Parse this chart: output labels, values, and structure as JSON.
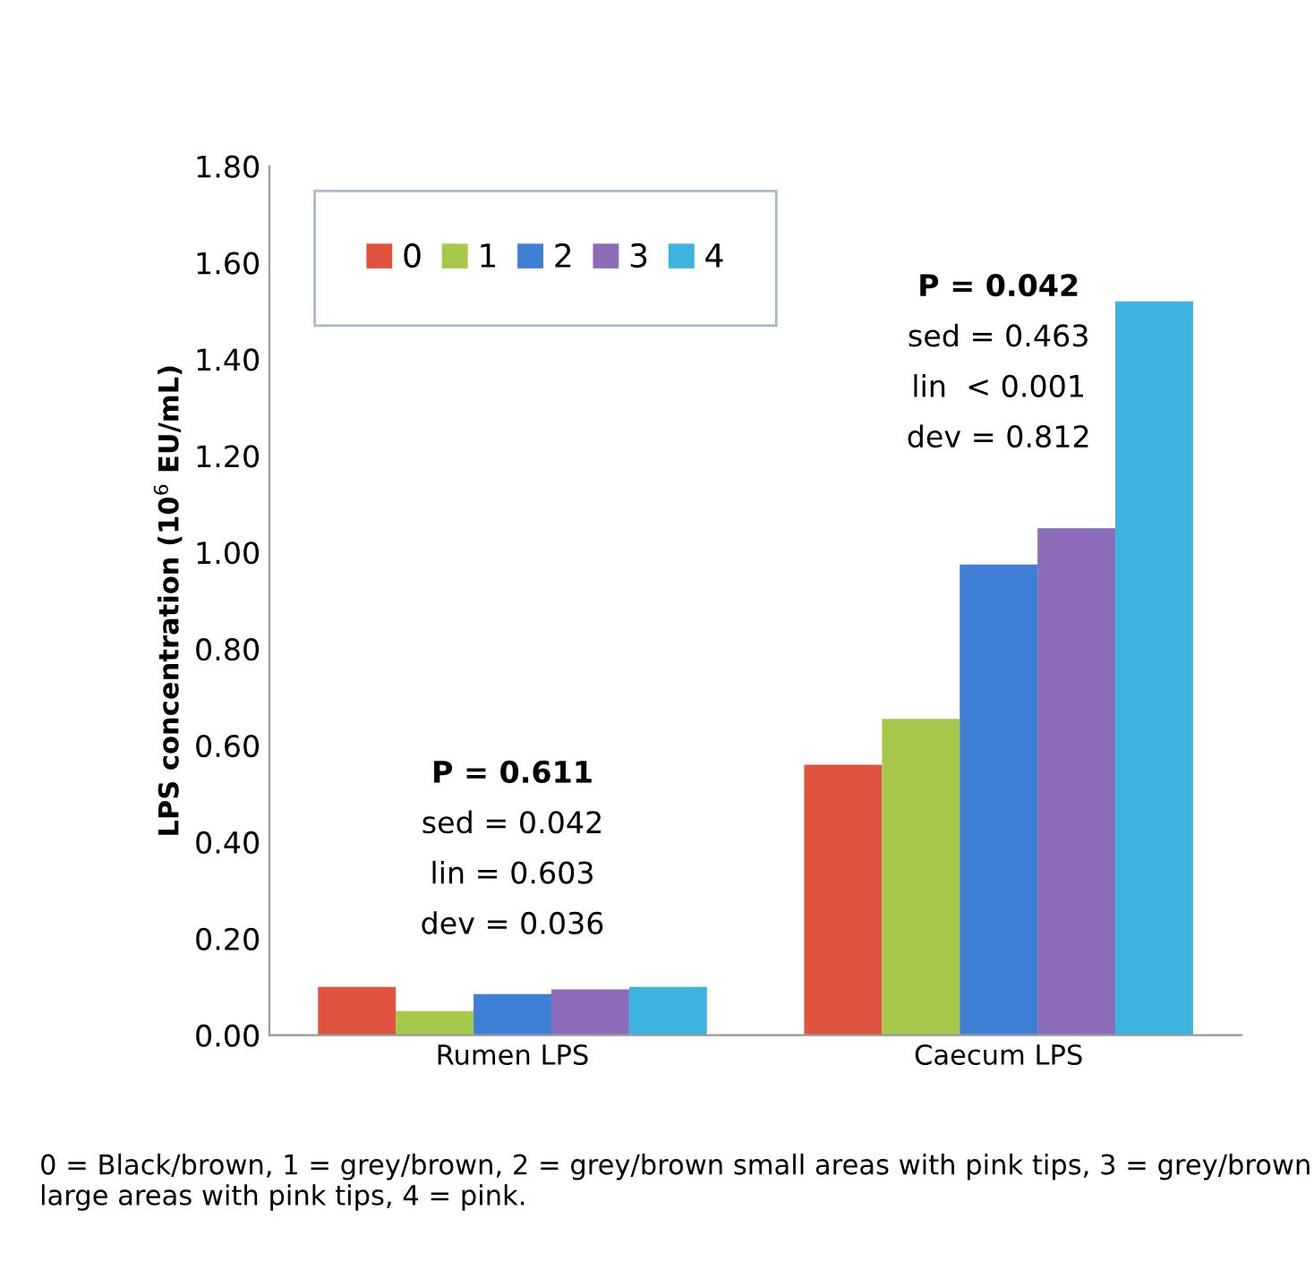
{
  "chart_data": {
    "type": "bar",
    "ylabel": "LPS concentration (10$^{6}$ EU/mL)",
    "categories": [
      "Rumen LPS",
      "Caecum LPS"
    ],
    "series": [
      {
        "name": "0",
        "color": "#e0533f",
        "values": [
          0.1,
          0.56
        ]
      },
      {
        "name": "1",
        "color": "#a5c84a",
        "values": [
          0.05,
          0.655
        ]
      },
      {
        "name": "2",
        "color": "#3f7fd6",
        "values": [
          0.085,
          0.975
        ]
      },
      {
        "name": "3",
        "color": "#8a6cb8",
        "values": [
          0.095,
          1.05
        ]
      },
      {
        "name": "4",
        "color": "#3db4e0",
        "values": [
          0.1,
          1.52
        ]
      }
    ],
    "ylim": [
      0,
      1.8
    ],
    "yticks": [
      {
        "value": 0,
        "label": "0.00"
      },
      {
        "value": 0.2,
        "label": "0.20"
      },
      {
        "value": 0.4,
        "label": "0.40"
      },
      {
        "value": 0.6,
        "label": "0.60"
      },
      {
        "value": 0.8,
        "label": "0.80"
      },
      {
        "value": 1.0,
        "label": "1.00"
      },
      {
        "value": 1.2,
        "label": "1.20"
      },
      {
        "value": 1.4,
        "label": "1.40"
      },
      {
        "value": 1.6,
        "label": "1.60"
      },
      {
        "value": 1.8,
        "label": "1.80"
      }
    ],
    "grid": false,
    "legend": "top left",
    "annotations": [
      "P = 0.611",
      "sed = 0.042",
      "lin = 0.603",
      "dev = 0.036",
      "P = 0.042",
      "sed = 0.463",
      "lin  < 0.001",
      "dev = 0.812",
      "0 = Black/brown, 1 = grey/brown, 2 = grey/brown small areas with pink tips, 3 = grey/brown large areas with pink tips, 4 = pink."
    ]
  }
}
